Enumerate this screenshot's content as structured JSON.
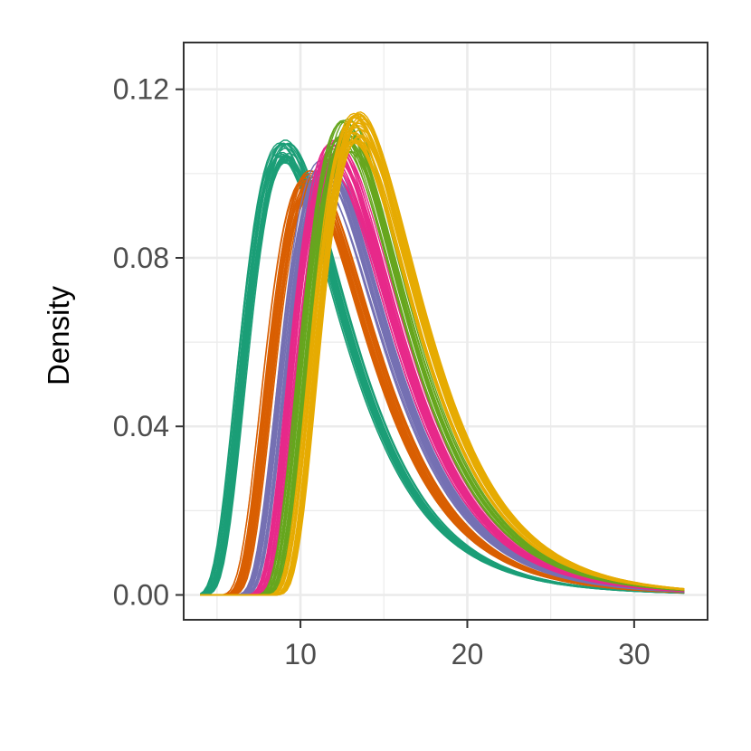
{
  "chart_data": {
    "type": "line",
    "title": "",
    "xlabel": "",
    "ylabel": "Density",
    "xlim": [
      3.0,
      34.4
    ],
    "ylim": [
      -0.0059,
      0.1311
    ],
    "x_ticks": [
      10,
      20,
      30
    ],
    "x_tick_labels": [
      "10",
      "20",
      "30"
    ],
    "y_ticks": [
      0.0,
      0.04,
      0.08,
      0.12
    ],
    "y_tick_labels": [
      "0.00",
      "0.04",
      "0.08",
      "0.12"
    ],
    "x_minor_ticks": [
      5,
      15,
      25
    ],
    "y_minor_ticks": [
      0.02,
      0.06,
      0.1
    ],
    "grid": true,
    "legend": "none",
    "x_range": [
      4,
      33
    ],
    "series": [
      {
        "color": "#1b9e77",
        "peak_x": 9.0,
        "peak_y": 0.105,
        "shift_spread": 0.35,
        "peak_spread": 0.003,
        "curves": 26
      },
      {
        "color": "#d95f02",
        "peak_x": 10.6,
        "peak_y": 0.098,
        "shift_spread": 0.35,
        "peak_spread": 0.003,
        "curves": 22
      },
      {
        "color": "#7570b3",
        "peak_x": 11.5,
        "peak_y": 0.1,
        "shift_spread": 0.35,
        "peak_spread": 0.0035,
        "curves": 22
      },
      {
        "color": "#e7298a",
        "peak_x": 12.1,
        "peak_y": 0.104,
        "shift_spread": 0.35,
        "peak_spread": 0.004,
        "curves": 22
      },
      {
        "color": "#66a61e",
        "peak_x": 12.7,
        "peak_y": 0.109,
        "shift_spread": 0.35,
        "peak_spread": 0.004,
        "curves": 22
      },
      {
        "color": "#e6ab02",
        "peak_x": 13.4,
        "peak_y": 0.111,
        "shift_spread": 0.35,
        "peak_spread": 0.004,
        "curves": 30
      }
    ]
  }
}
